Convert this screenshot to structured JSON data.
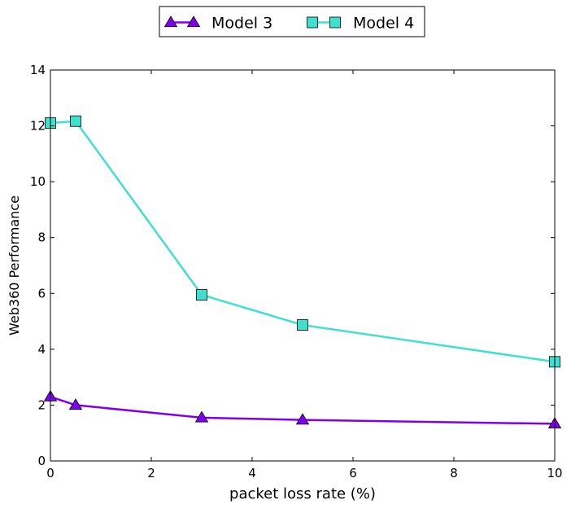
{
  "chart_data": {
    "type": "line",
    "title": "",
    "xlabel": "packet loss rate (%)",
    "ylabel": "Web360 Performance",
    "xlim": [
      0,
      10
    ],
    "ylim": [
      0,
      14
    ],
    "xticks": [
      0,
      2,
      4,
      6,
      8,
      10
    ],
    "yticks": [
      0,
      2,
      4,
      6,
      8,
      10,
      12,
      14
    ],
    "grid": false,
    "legend_position": "top-center",
    "series": [
      {
        "name": "Model 3",
        "color": "#8000ee",
        "marker": "triangle",
        "x": [
          0,
          0.5,
          3,
          5,
          10
        ],
        "y": [
          2.3,
          2.0,
          1.55,
          1.47,
          1.33
        ]
      },
      {
        "name": "Model 4",
        "color": "#40e0d0",
        "marker": "square",
        "x": [
          0,
          0.5,
          3,
          5,
          10
        ],
        "y": [
          12.1,
          12.17,
          5.95,
          4.87,
          3.55
        ]
      }
    ]
  }
}
